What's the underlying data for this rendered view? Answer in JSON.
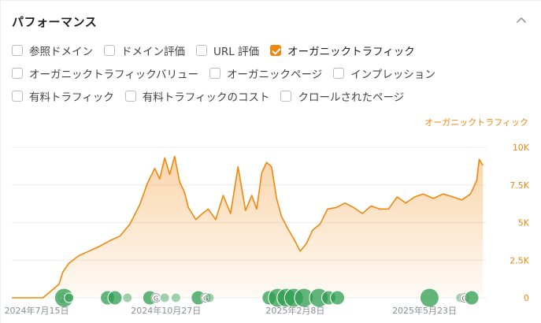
{
  "panel": {
    "title": "パフォーマンス",
    "collapse_icon": "chevron-up-icon"
  },
  "checkboxes": [
    [
      {
        "label": "参照ドメイン",
        "checked": false
      },
      {
        "label": "ドメイン評価",
        "checked": false
      },
      {
        "label": "URL 評価",
        "checked": false
      },
      {
        "label": "オーガニックトラフィック",
        "checked": true
      }
    ],
    [
      {
        "label": "オーガニックトラフィックバリュー",
        "checked": false
      },
      {
        "label": "オーガニックページ",
        "checked": false
      },
      {
        "label": "インプレッション",
        "checked": false
      }
    ],
    [
      {
        "label": "有料トラフィック",
        "checked": false
      },
      {
        "label": "有料トラフィックのコスト",
        "checked": false
      },
      {
        "label": "クロールされたページ",
        "checked": false
      }
    ]
  ],
  "colors": {
    "accent": "#f0870f",
    "marker": "#2e9e4f",
    "grid": "#ececec",
    "axis_label": "#8a8f95"
  },
  "chart_data": {
    "type": "area",
    "legend": "オーガニックトラフィック",
    "x_ticks": [
      "2024年7月15日",
      "2024年10月27日",
      "2025年2月8日",
      "2025年5月23日"
    ],
    "y_ticks": [
      "10K",
      "7.5K",
      "5K",
      "2.5K",
      "0"
    ],
    "ylim": [
      0,
      10000
    ],
    "x_range": [
      "2024-06-25",
      "2025-07-12"
    ],
    "series": [
      {
        "x": [
          "2024-06-25",
          "2024-07-20",
          "2024-08-02",
          "2024-08-05",
          "2024-08-10",
          "2024-08-18",
          "2024-08-26",
          "2024-09-03",
          "2024-09-12",
          "2024-09-20",
          "2024-09-28",
          "2024-10-06",
          "2024-10-12",
          "2024-10-18",
          "2024-10-22",
          "2024-10-26",
          "2024-10-30",
          "2024-11-03",
          "2024-11-07",
          "2024-11-11",
          "2024-11-14",
          "2024-11-17",
          "2024-11-20",
          "2024-11-24",
          "2024-11-30",
          "2024-12-06",
          "2024-12-12",
          "2024-12-18",
          "2024-12-24",
          "2024-12-30",
          "2025-01-04",
          "2025-01-08",
          "2025-01-12",
          "2025-01-16",
          "2025-01-20",
          "2025-01-24",
          "2025-01-28",
          "2025-02-02",
          "2025-02-07",
          "2025-02-12",
          "2025-02-17",
          "2025-02-22",
          "2025-02-28",
          "2025-03-06",
          "2025-03-13",
          "2025-03-20",
          "2025-03-27",
          "2025-04-03",
          "2025-04-10",
          "2025-04-17",
          "2025-04-24",
          "2025-05-01",
          "2025-05-08",
          "2025-05-15",
          "2025-05-22",
          "2025-05-30",
          "2025-06-07",
          "2025-06-15",
          "2025-06-22",
          "2025-06-29",
          "2025-07-04",
          "2025-07-06",
          "2025-07-09"
        ],
        "y": [
          0,
          0,
          900,
          1700,
          2300,
          2800,
          3100,
          3400,
          3800,
          4100,
          4900,
          6200,
          7600,
          8600,
          7900,
          9300,
          8200,
          9400,
          7700,
          7000,
          6000,
          5600,
          5200,
          5500,
          5900,
          5200,
          6800,
          5600,
          8700,
          5800,
          6800,
          5900,
          8300,
          9000,
          8700,
          6600,
          5400,
          4600,
          3900,
          3100,
          3600,
          4500,
          4900,
          5900,
          6000,
          6300,
          6000,
          5600,
          6100,
          5900,
          5900,
          6700,
          6300,
          6700,
          6900,
          6600,
          6900,
          6700,
          6500,
          6900,
          7800,
          9200,
          8800
        ]
      }
    ]
  },
  "markers": [
    {
      "date": "2024-08-05",
      "size": "small",
      "label": "2"
    },
    {
      "date": "2024-08-06",
      "size": "large",
      "label": ""
    },
    {
      "date": "2024-08-10",
      "size": "small",
      "label": ""
    },
    {
      "date": "2024-09-10",
      "size": "medium",
      "label": ""
    },
    {
      "date": "2024-09-16",
      "size": "medium",
      "label": ""
    },
    {
      "date": "2024-09-26",
      "size": "small",
      "label": ""
    },
    {
      "date": "2024-10-14",
      "size": "medium",
      "label": ""
    },
    {
      "date": "2024-10-19",
      "size": "small",
      "label": "G"
    },
    {
      "date": "2024-10-26",
      "size": "small",
      "label": ""
    },
    {
      "date": "2024-11-04",
      "size": "small",
      "label": ""
    },
    {
      "date": "2024-11-22",
      "size": "medium",
      "label": ""
    },
    {
      "date": "2024-11-28",
      "size": "small",
      "label": "G"
    },
    {
      "date": "2024-12-01",
      "size": "small",
      "label": ""
    },
    {
      "date": "2025-01-18",
      "size": "medium",
      "label": ""
    },
    {
      "date": "2025-01-25",
      "size": "large",
      "label": ""
    },
    {
      "date": "2025-02-01",
      "size": "large",
      "label": ""
    },
    {
      "date": "2025-02-07",
      "size": "large",
      "label": ""
    },
    {
      "date": "2025-02-15",
      "size": "large",
      "label": ""
    },
    {
      "date": "2025-02-27",
      "size": "large",
      "label": ""
    },
    {
      "date": "2025-03-07",
      "size": "medium",
      "label": ""
    },
    {
      "date": "2025-03-14",
      "size": "medium",
      "label": ""
    },
    {
      "date": "2025-05-27",
      "size": "large",
      "label": ""
    },
    {
      "date": "2025-06-21",
      "size": "small",
      "label": ""
    },
    {
      "date": "2025-06-24",
      "size": "small",
      "label": "G"
    },
    {
      "date": "2025-06-30",
      "size": "medium",
      "label": ""
    }
  ]
}
